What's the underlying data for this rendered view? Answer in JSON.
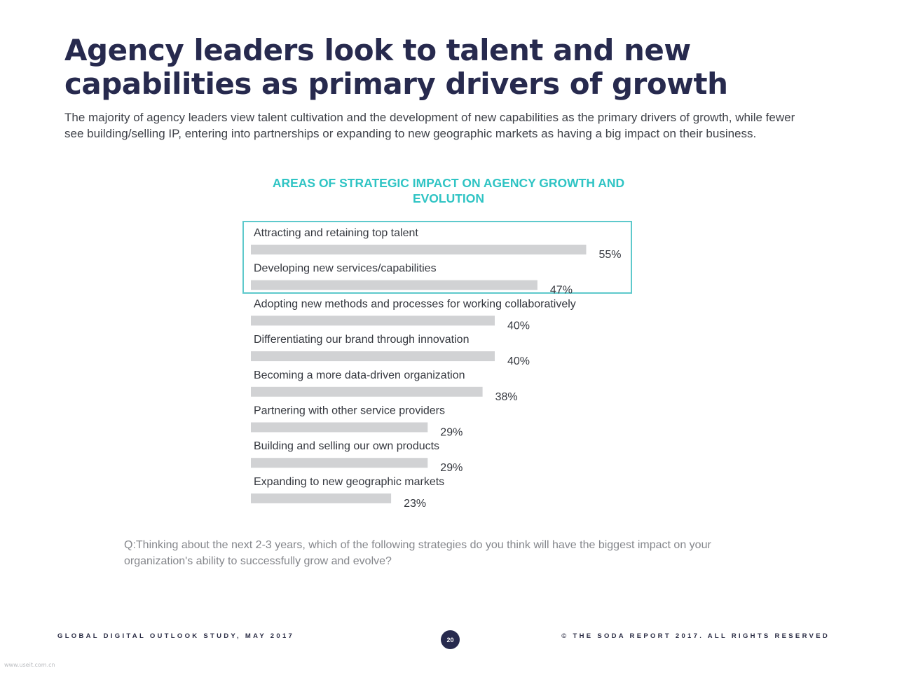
{
  "header": {
    "title": "Agency leaders look to talent and new capabilities as primary drivers of growth",
    "subtitle": "The majority of agency leaders view talent cultivation and the development of new capabilities as the primary drivers of growth, while fewer see building/selling IP, entering into partnerships or expanding to new geographic markets as having a big impact on their business."
  },
  "chart_data": {
    "type": "bar",
    "orientation": "horizontal",
    "title": "AREAS OF STRATEGIC IMPACT ON AGENCY GROWTH AND EVOLUTION",
    "categories": [
      "Attracting and retaining top talent",
      "Developing new services/capabilities",
      "Adopting new methods and processes for working collaboratively",
      "Differentiating our brand through innovation",
      "Becoming a more data-driven organization",
      "Partnering with other service providers",
      "Building and selling our own products",
      "Expanding to new geographic markets"
    ],
    "values": [
      55,
      47,
      40,
      40,
      38,
      29,
      29,
      23
    ],
    "value_labels": [
      "55%",
      "47%",
      "40%",
      "40%",
      "38%",
      "29%",
      "29%",
      "23%"
    ],
    "unit": "%",
    "highlighted": [
      0,
      1
    ],
    "bar_color": "#d1d2d4",
    "highlight_color": "#5ec9cc",
    "title_color": "#2fc4c4",
    "grid": false
  },
  "question": "Q:Thinking about the next 2-3 years, which of the following strategies do you think will have the biggest impact on your organization's ability to successfully grow and evolve?",
  "footer": {
    "left": "GLOBAL DIGITAL OUTLOOK STUDY, MAY 2017",
    "page": "20",
    "right": "© THE SODA REPORT 2017. ALL RIGHTS RESERVED"
  },
  "watermark": "www.useit.com.cn"
}
